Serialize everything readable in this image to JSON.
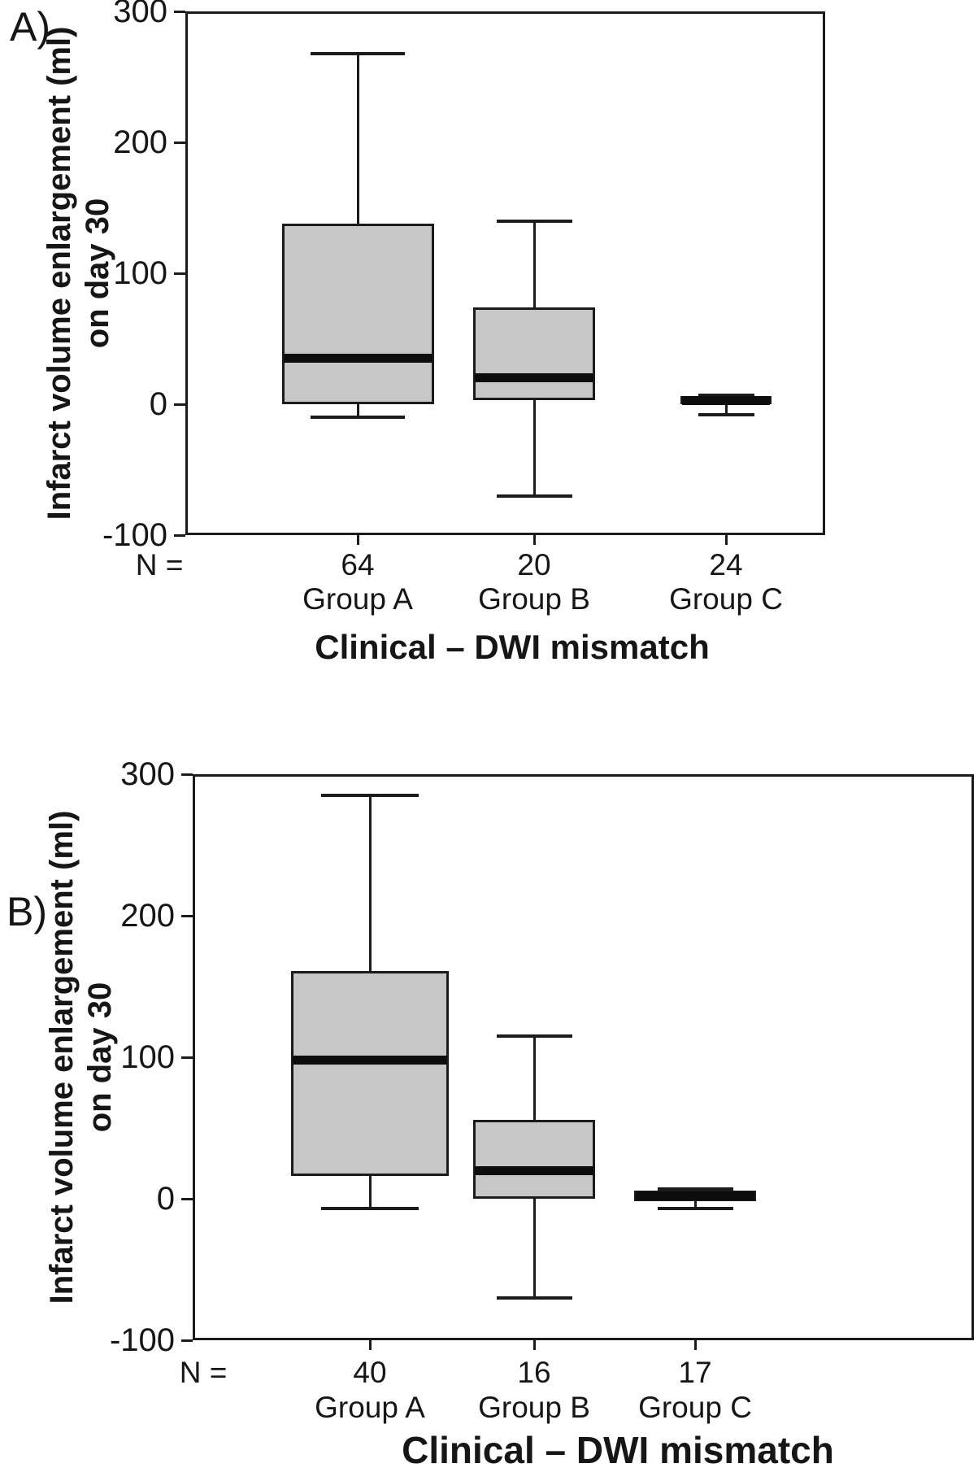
{
  "figure": {
    "panel_a_letter": "A)",
    "panel_b_letter": "B)",
    "colors": {
      "box_fill": "#c7c7c7",
      "line": "#1b1b1b",
      "median": "#0d0d0d",
      "background": "#fefefe"
    }
  },
  "chart_data": [
    {
      "type": "box",
      "panel": "A)",
      "title": "",
      "xlabel": "Clinical – DWI mismatch",
      "ylabel": "Infarct volume enlargement (ml)",
      "ylabel_line2": "on day 30",
      "n_label": "N =",
      "ylim": [
        -100,
        300
      ],
      "yticks": [
        300,
        200,
        100,
        0,
        -100
      ],
      "grid": false,
      "legend": null,
      "categories": [
        "Group A",
        "Group B",
        "Group C"
      ],
      "n_values": [
        "64",
        "20",
        "24"
      ],
      "groups": [
        {
          "label": "Group A",
          "n": "64",
          "whisker_low": -10,
          "q1": 0,
          "median": 35,
          "q3": 138,
          "whisker_high": 268
        },
        {
          "label": "Group B",
          "n": "20",
          "whisker_low": -70,
          "q1": 3,
          "median": 20,
          "q3": 74,
          "whisker_high": 140
        },
        {
          "label": "Group C",
          "n": "24",
          "whisker_low": -8,
          "q1": 0,
          "median": 3,
          "q3": 6,
          "whisker_high": 7
        }
      ]
    },
    {
      "type": "box",
      "panel": "B)",
      "title": "",
      "xlabel": "Clinical – DWI mismatch",
      "ylabel": "Infarct volume enlargement (ml)",
      "ylabel_line2": "on day 30",
      "n_label": "N =",
      "ylim": [
        -100,
        300
      ],
      "yticks": [
        300,
        200,
        100,
        0,
        -100
      ],
      "grid": false,
      "legend": null,
      "categories": [
        "Group A",
        "Group B",
        "Group C"
      ],
      "n_values": [
        "40",
        "16",
        "17"
      ],
      "groups": [
        {
          "label": "Group A",
          "n": "40",
          "whisker_low": -7,
          "q1": 16,
          "median": 98,
          "q3": 161,
          "whisker_high": 285
        },
        {
          "label": "Group B",
          "n": "16",
          "whisker_low": -70,
          "q1": 0,
          "median": 20,
          "q3": 56,
          "whisker_high": 115
        },
        {
          "label": "Group C",
          "n": "17",
          "whisker_low": -7,
          "q1": -2,
          "median": 2,
          "q3": 6,
          "whisker_high": 7
        }
      ]
    }
  ]
}
